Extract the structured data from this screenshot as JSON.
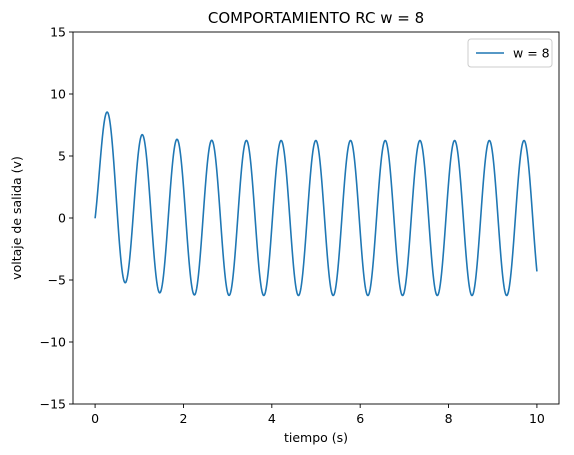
{
  "chart_data": {
    "type": "line",
    "title": "COMPORTAMIENTO RC w = 8",
    "xlabel": "tiempo (s)",
    "ylabel": "voltaje de salida (v)",
    "xlim": [
      -0.5,
      10.5
    ],
    "ylim": [
      -15,
      15
    ],
    "xticks": [
      0,
      2,
      4,
      6,
      8,
      10
    ],
    "yticks": [
      -15,
      -10,
      -5,
      0,
      5,
      10,
      15
    ],
    "xtick_labels": [
      "0",
      "2",
      "4",
      "6",
      "8",
      "10"
    ],
    "ytick_labels": [
      "−15",
      "−10",
      "−5",
      "0",
      "5",
      "10",
      "15"
    ],
    "grid": false,
    "legend_position": "top-right",
    "color": "#1f77b4",
    "series": [
      {
        "name": "w = 8",
        "model": {
          "steady_amplitude": 6.25,
          "angular_frequency": 8,
          "phase": -0.7,
          "transient_amplitude": 4.0,
          "time_constant": 0.5,
          "t_start": 0,
          "t_end": 10
        },
        "key_points": [
          {
            "x": 0.0,
            "y": 0.0
          },
          {
            "x": 0.32,
            "y": 7.8
          },
          {
            "x": 0.72,
            "y": -5.9
          },
          {
            "x": 1.1,
            "y": 6.3
          },
          {
            "x": 1.5,
            "y": -6.2
          },
          {
            "x": 10.0,
            "y": -2.2
          }
        ]
      }
    ]
  }
}
